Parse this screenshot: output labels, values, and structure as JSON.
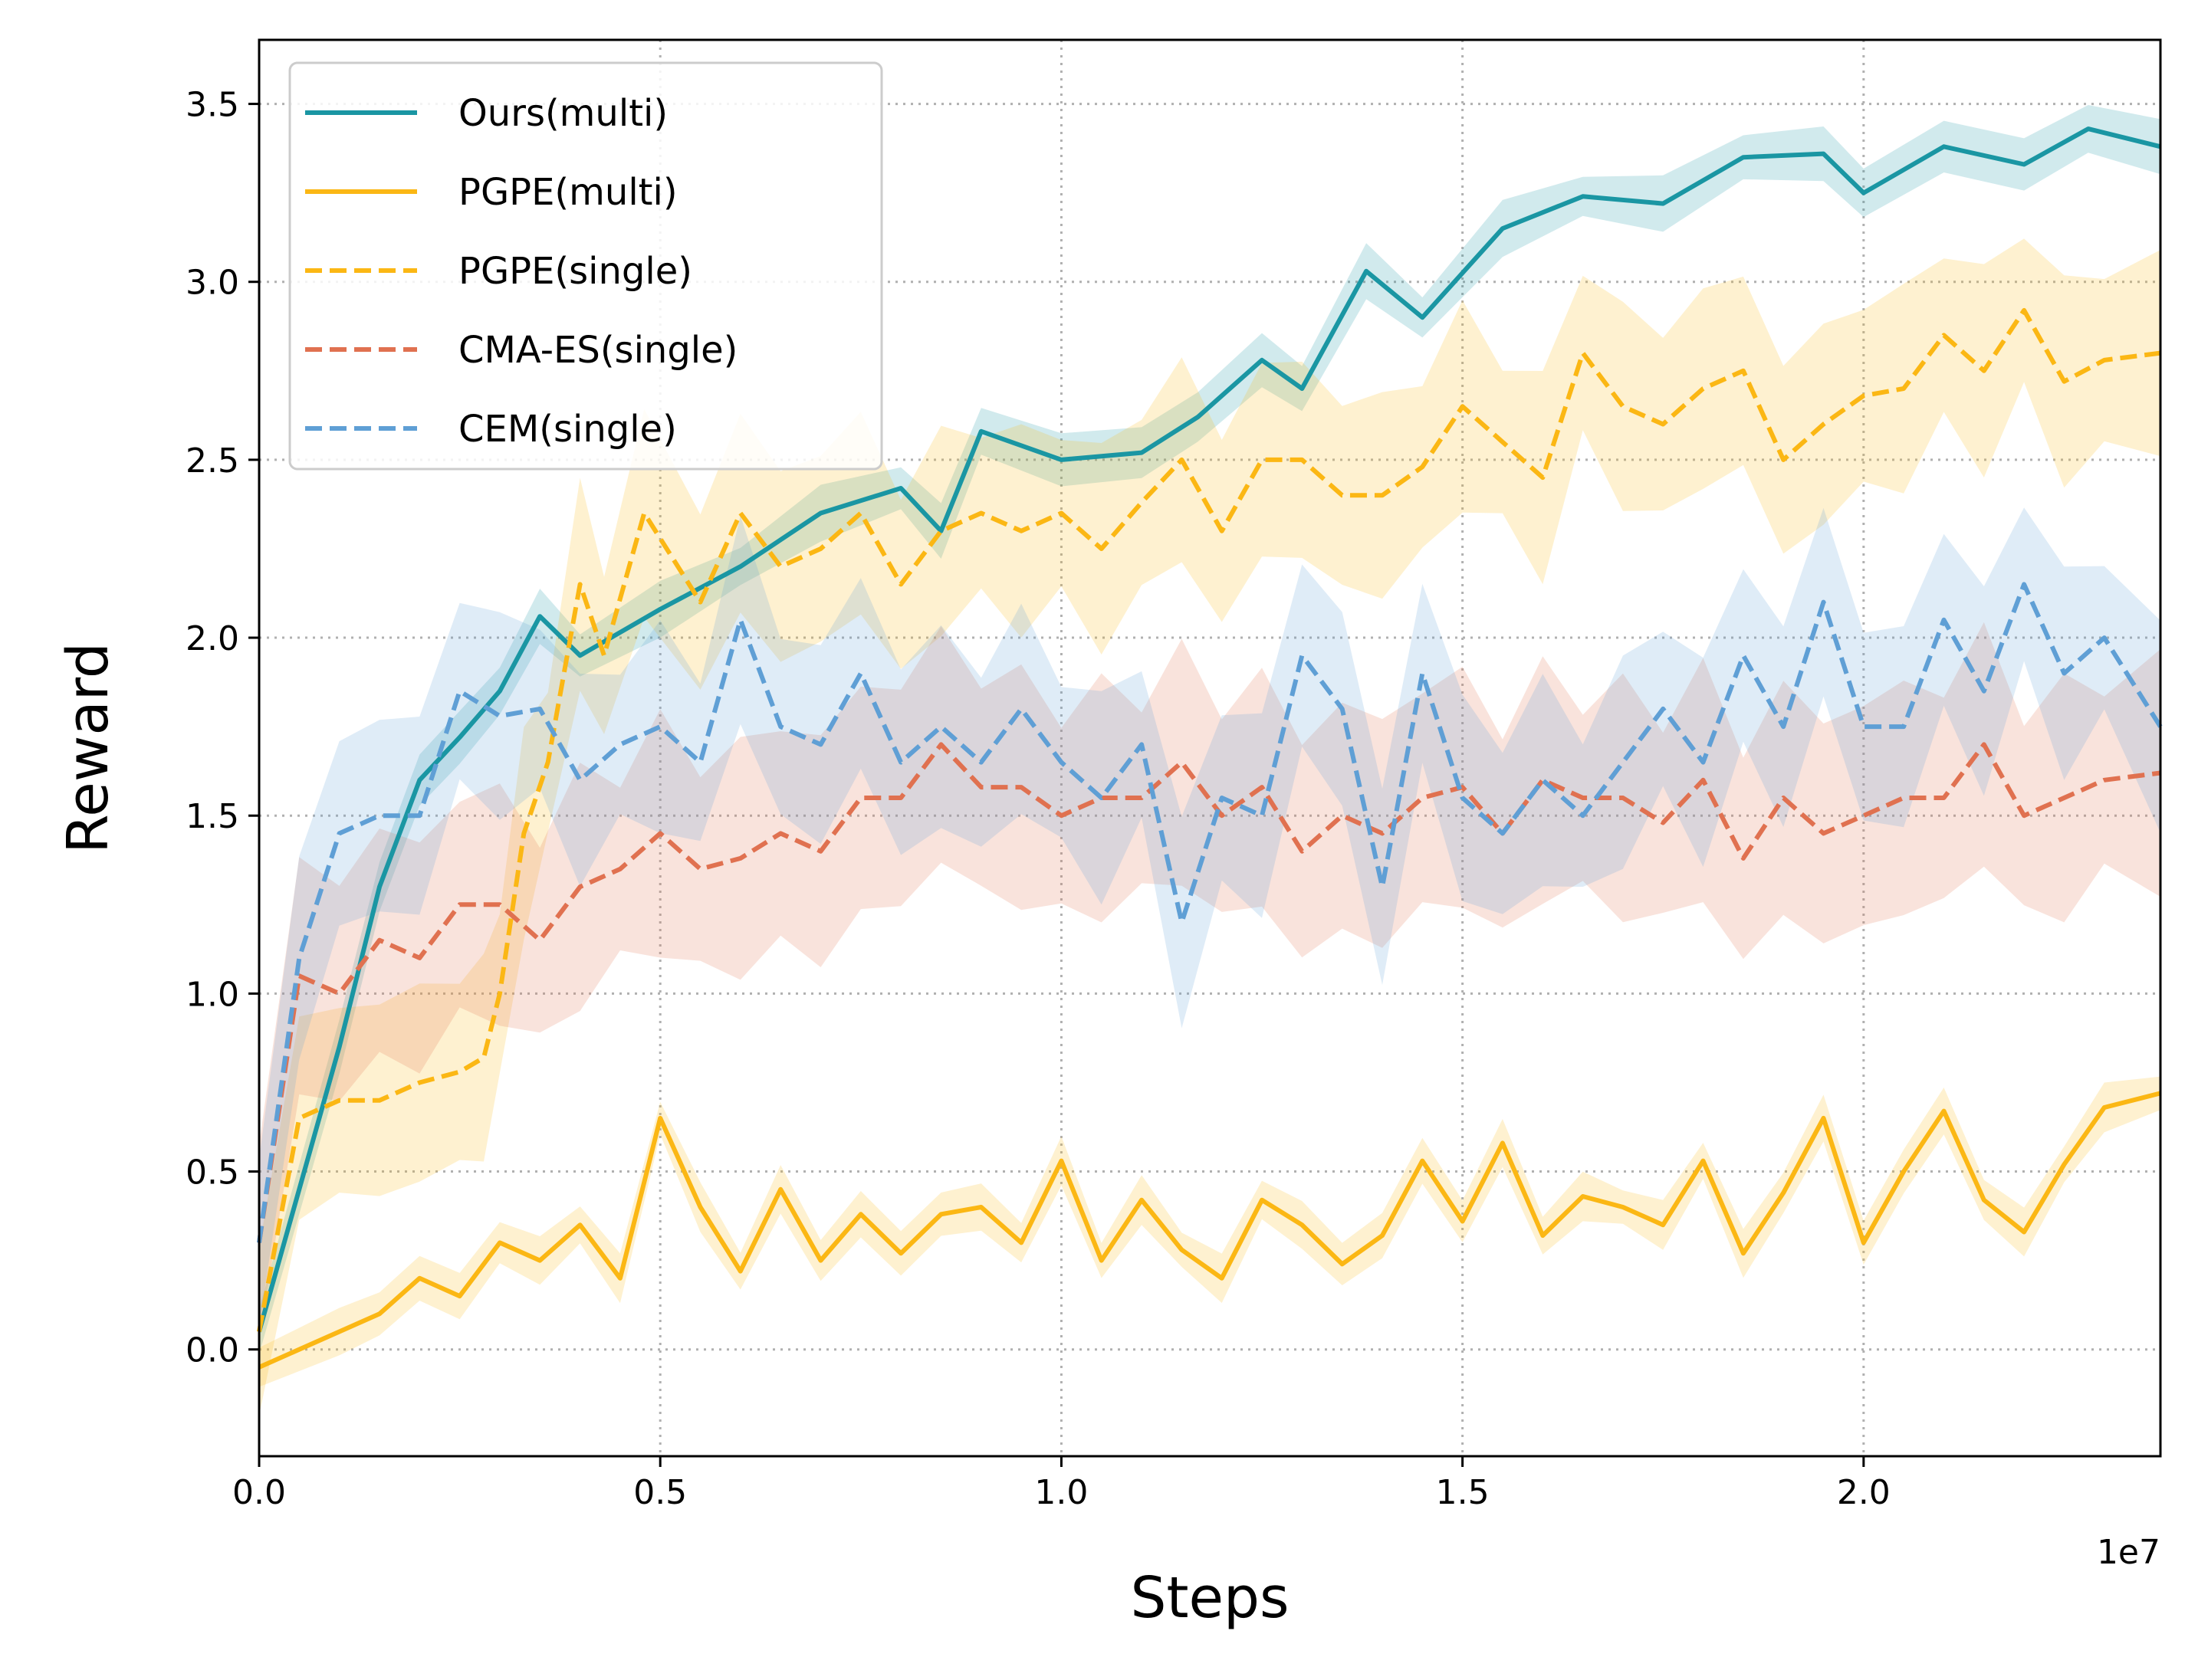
{
  "chart_data": {
    "type": "line",
    "title": "",
    "xlabel": "Steps",
    "ylabel": "Reward",
    "x_offset_label": "1e7",
    "xlim": [
      0,
      2.37
    ],
    "ylim": [
      -0.3,
      3.68
    ],
    "xticks": [
      0.0,
      0.5,
      1.0,
      1.5,
      2.0
    ],
    "xtick_labels": [
      "0.0",
      "0.5",
      "1.0",
      "1.5",
      "2.0"
    ],
    "yticks": [
      0.0,
      0.5,
      1.0,
      1.5,
      2.0,
      2.5,
      3.0,
      3.5
    ],
    "ytick_labels": [
      "0.0",
      "0.5",
      "1.0",
      "1.5",
      "2.0",
      "2.5",
      "3.0",
      "3.5"
    ],
    "grid": true,
    "legend_position": "top-left",
    "series": [
      {
        "name": "Ours(multi)",
        "color": "#1a96a3",
        "dash": "solid",
        "band": 0.08,
        "x": [
          0.0,
          0.1,
          0.15,
          0.2,
          0.25,
          0.3,
          0.35,
          0.4,
          0.5,
          0.6,
          0.7,
          0.8,
          0.85,
          0.9,
          1.0,
          1.1,
          1.17,
          1.25,
          1.3,
          1.38,
          1.45,
          1.55,
          1.65,
          1.75,
          1.85,
          1.95,
          2.0,
          2.1,
          2.2,
          2.28,
          2.37
        ],
        "values": [
          0.05,
          0.85,
          1.3,
          1.6,
          1.72,
          1.85,
          2.06,
          1.95,
          2.08,
          2.2,
          2.35,
          2.42,
          2.3,
          2.58,
          2.5,
          2.52,
          2.62,
          2.78,
          2.7,
          3.03,
          2.9,
          3.15,
          3.24,
          3.22,
          3.35,
          3.36,
          3.25,
          3.38,
          3.33,
          3.43,
          3.38
        ]
      },
      {
        "name": "PGPE(multi)",
        "color": "#fbb714",
        "dash": "solid",
        "band": 0.07,
        "x": [
          0.0,
          0.1,
          0.15,
          0.2,
          0.25,
          0.3,
          0.35,
          0.4,
          0.45,
          0.5,
          0.55,
          0.6,
          0.65,
          0.7,
          0.75,
          0.8,
          0.85,
          0.9,
          0.95,
          1.0,
          1.05,
          1.1,
          1.15,
          1.2,
          1.25,
          1.3,
          1.35,
          1.4,
          1.45,
          1.5,
          1.55,
          1.6,
          1.65,
          1.7,
          1.75,
          1.8,
          1.85,
          1.9,
          1.95,
          2.0,
          2.05,
          2.1,
          2.15,
          2.2,
          2.25,
          2.3,
          2.37
        ],
        "values": [
          -0.05,
          0.05,
          0.1,
          0.2,
          0.15,
          0.3,
          0.25,
          0.35,
          0.2,
          0.65,
          0.4,
          0.22,
          0.45,
          0.25,
          0.38,
          0.27,
          0.38,
          0.4,
          0.3,
          0.53,
          0.25,
          0.42,
          0.28,
          0.2,
          0.42,
          0.35,
          0.24,
          0.32,
          0.53,
          0.36,
          0.58,
          0.32,
          0.43,
          0.4,
          0.35,
          0.53,
          0.27,
          0.44,
          0.65,
          0.3,
          0.5,
          0.67,
          0.42,
          0.33,
          0.52,
          0.68,
          0.72
        ]
      },
      {
        "name": "PGPE(single)",
        "color": "#fbb714",
        "dash": "dashed",
        "band": 0.3,
        "x": [
          0.0,
          0.05,
          0.1,
          0.15,
          0.2,
          0.25,
          0.28,
          0.3,
          0.33,
          0.36,
          0.4,
          0.43,
          0.48,
          0.55,
          0.6,
          0.65,
          0.7,
          0.75,
          0.8,
          0.85,
          0.9,
          0.95,
          1.0,
          1.05,
          1.1,
          1.15,
          1.2,
          1.25,
          1.3,
          1.35,
          1.4,
          1.45,
          1.5,
          1.55,
          1.6,
          1.65,
          1.7,
          1.75,
          1.8,
          1.85,
          1.9,
          1.95,
          2.0,
          2.05,
          2.1,
          2.15,
          2.2,
          2.25,
          2.3,
          2.37
        ],
        "values": [
          0.05,
          0.65,
          0.7,
          0.7,
          0.75,
          0.78,
          0.82,
          1.0,
          1.45,
          1.65,
          2.15,
          1.95,
          2.35,
          2.1,
          2.35,
          2.2,
          2.25,
          2.35,
          2.15,
          2.3,
          2.35,
          2.3,
          2.35,
          2.25,
          2.38,
          2.5,
          2.3,
          2.5,
          2.5,
          2.4,
          2.4,
          2.48,
          2.65,
          2.55,
          2.45,
          2.8,
          2.65,
          2.6,
          2.7,
          2.75,
          2.5,
          2.6,
          2.68,
          2.7,
          2.85,
          2.75,
          2.92,
          2.72,
          2.78,
          2.8
        ]
      },
      {
        "name": "CMA-ES(single)",
        "color": "#e07150",
        "dash": "dashed",
        "band": 0.35,
        "x": [
          0.0,
          0.05,
          0.1,
          0.15,
          0.2,
          0.25,
          0.3,
          0.35,
          0.4,
          0.45,
          0.5,
          0.55,
          0.6,
          0.65,
          0.7,
          0.75,
          0.8,
          0.85,
          0.9,
          0.95,
          1.0,
          1.05,
          1.1,
          1.15,
          1.2,
          1.25,
          1.3,
          1.35,
          1.4,
          1.45,
          1.5,
          1.55,
          1.6,
          1.65,
          1.7,
          1.75,
          1.8,
          1.85,
          1.9,
          1.95,
          2.0,
          2.05,
          2.1,
          2.15,
          2.2,
          2.25,
          2.3,
          2.37
        ],
        "values": [
          0.3,
          1.05,
          1.0,
          1.15,
          1.1,
          1.25,
          1.25,
          1.15,
          1.3,
          1.35,
          1.45,
          1.35,
          1.38,
          1.45,
          1.4,
          1.55,
          1.55,
          1.7,
          1.58,
          1.58,
          1.5,
          1.55,
          1.55,
          1.65,
          1.5,
          1.58,
          1.4,
          1.5,
          1.45,
          1.55,
          1.58,
          1.45,
          1.6,
          1.55,
          1.55,
          1.48,
          1.6,
          1.38,
          1.55,
          1.45,
          1.5,
          1.55,
          1.55,
          1.7,
          1.5,
          1.55,
          1.6,
          1.62
        ]
      },
      {
        "name": "CEM(single)",
        "color": "#5f9fd5",
        "dash": "dashed",
        "band": 0.3,
        "x": [
          0.0,
          0.05,
          0.1,
          0.15,
          0.2,
          0.25,
          0.3,
          0.35,
          0.4,
          0.45,
          0.5,
          0.55,
          0.6,
          0.65,
          0.7,
          0.75,
          0.8,
          0.85,
          0.9,
          0.95,
          1.0,
          1.05,
          1.1,
          1.15,
          1.2,
          1.25,
          1.3,
          1.35,
          1.4,
          1.45,
          1.5,
          1.55,
          1.6,
          1.65,
          1.7,
          1.75,
          1.8,
          1.85,
          1.9,
          1.95,
          2.0,
          2.05,
          2.1,
          2.15,
          2.2,
          2.25,
          2.3,
          2.37
        ],
        "values": [
          0.3,
          1.1,
          1.45,
          1.5,
          1.5,
          1.85,
          1.78,
          1.8,
          1.6,
          1.7,
          1.75,
          1.65,
          2.05,
          1.75,
          1.7,
          1.9,
          1.65,
          1.75,
          1.65,
          1.8,
          1.65,
          1.55,
          1.7,
          1.2,
          1.55,
          1.5,
          1.95,
          1.8,
          1.3,
          1.9,
          1.55,
          1.45,
          1.6,
          1.5,
          1.65,
          1.8,
          1.65,
          1.95,
          1.75,
          2.1,
          1.75,
          1.75,
          2.05,
          1.85,
          2.15,
          1.9,
          2.0,
          1.75
        ]
      }
    ]
  }
}
